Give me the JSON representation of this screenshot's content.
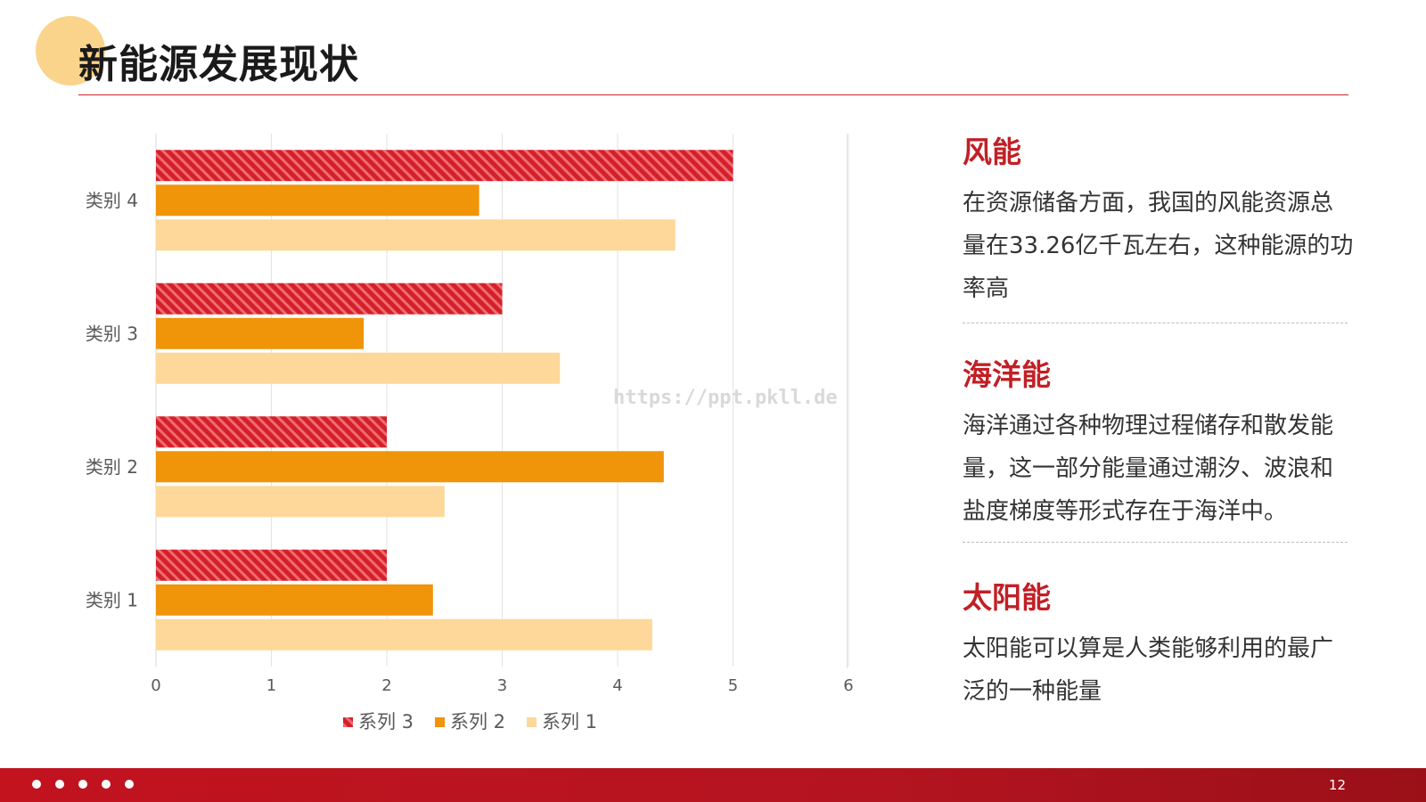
{
  "page": {
    "title": "新能源发展现状",
    "watermark": "https://ppt.pkll.de",
    "page_number": "12"
  },
  "colors": {
    "accent": "#c21f26",
    "series3": "#d4202a",
    "series2": "#f0940a",
    "series1": "#fdd89a",
    "title_circle": "#f9d48a"
  },
  "chart_data": {
    "type": "bar",
    "orientation": "horizontal",
    "categories": [
      "类别 1",
      "类别 2",
      "类别 3",
      "类别 4"
    ],
    "series": [
      {
        "name": "系列 3",
        "values": [
          2,
          2,
          3,
          5
        ],
        "pattern": "diagonal-stripes"
      },
      {
        "name": "系列 2",
        "values": [
          2.4,
          4.4,
          1.8,
          2.8
        ]
      },
      {
        "name": "系列 1",
        "values": [
          4.3,
          2.5,
          3.5,
          4.5
        ]
      }
    ],
    "x_ticks": [
      "0",
      "1",
      "2",
      "3",
      "4",
      "5",
      "6"
    ],
    "xlim": [
      0,
      6
    ],
    "grid": true,
    "legend_position": "bottom"
  },
  "panels": [
    {
      "heading": "风能",
      "body": "在资源储备方面，我国的风能资源总量在33.26亿千瓦左右，这种能源的功率高"
    },
    {
      "heading": "海洋能",
      "body": "海洋通过各种物理过程储存和散发能量，这一部分能量通过潮汐、波浪和盐度梯度等形式存在于海洋中。"
    },
    {
      "heading": "太阳能",
      "body": "太阳能可以算是人类能够利用的最广泛的一种能量"
    }
  ],
  "footer": {
    "dots": 5
  }
}
